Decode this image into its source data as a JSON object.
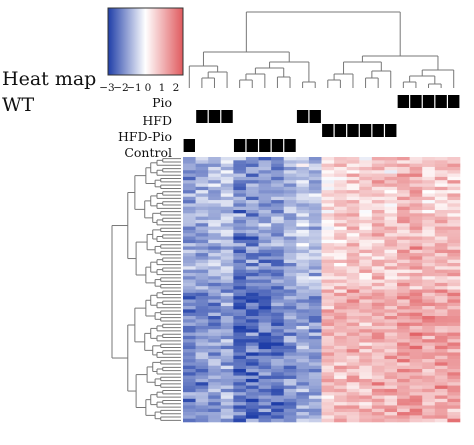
{
  "title_lines": [
    "Heat map",
    "WT"
  ],
  "colorbar": {
    "ticks": [
      "−3",
      "−2",
      "−1",
      "0",
      "1",
      "2"
    ],
    "tick_values": [
      -3,
      -2,
      -1,
      0,
      1,
      2
    ],
    "range": [
      -3,
      2.5
    ],
    "low_color": "#1f3ea8",
    "mid_color": "#ffffff",
    "high_color": "#e05a5e"
  },
  "chart_data": {
    "type": "heatmap",
    "title": "",
    "xlabel": "",
    "ylabel": "",
    "groups": [
      "Pio",
      "HFD",
      "HFD-Pio",
      "Control"
    ],
    "column_groups": [
      "Control",
      "HFD",
      "HFD",
      "HFD",
      "Control",
      "Control",
      "Control",
      "Control",
      "Control",
      "HFD",
      "HFD",
      "HFD-Pio",
      "HFD-Pio",
      "HFD-Pio",
      "HFD-Pio",
      "HFD-Pio",
      "HFD-Pio",
      "Pio",
      "Pio",
      "Pio",
      "Pio",
      "Pio"
    ],
    "n_columns": 22,
    "n_rows": 80,
    "column_mean_scores": [
      -1.4,
      -1.3,
      -1.2,
      -1.0,
      -1.8,
      -1.7,
      -1.5,
      -1.6,
      -1.2,
      -0.9,
      -1.1,
      0.7,
      0.9,
      1.0,
      0.8,
      1.1,
      0.9,
      1.2,
      1.3,
      1.0,
      1.2,
      1.1
    ],
    "row_block_offsets": [
      {
        "rows": [
          0,
          24
        ],
        "offset": -0.6
      },
      {
        "rows": [
          24,
          40
        ],
        "offset": -0.3
      },
      {
        "rows": [
          40,
          60
        ],
        "offset": 0.4
      },
      {
        "rows": [
          60,
          80
        ],
        "offset": 0.2
      }
    ],
    "column_dendrogram": "two main clusters: left (cols 1-11) and right (cols 12-22)",
    "row_dendrogram": "two main clusters joined at root"
  }
}
